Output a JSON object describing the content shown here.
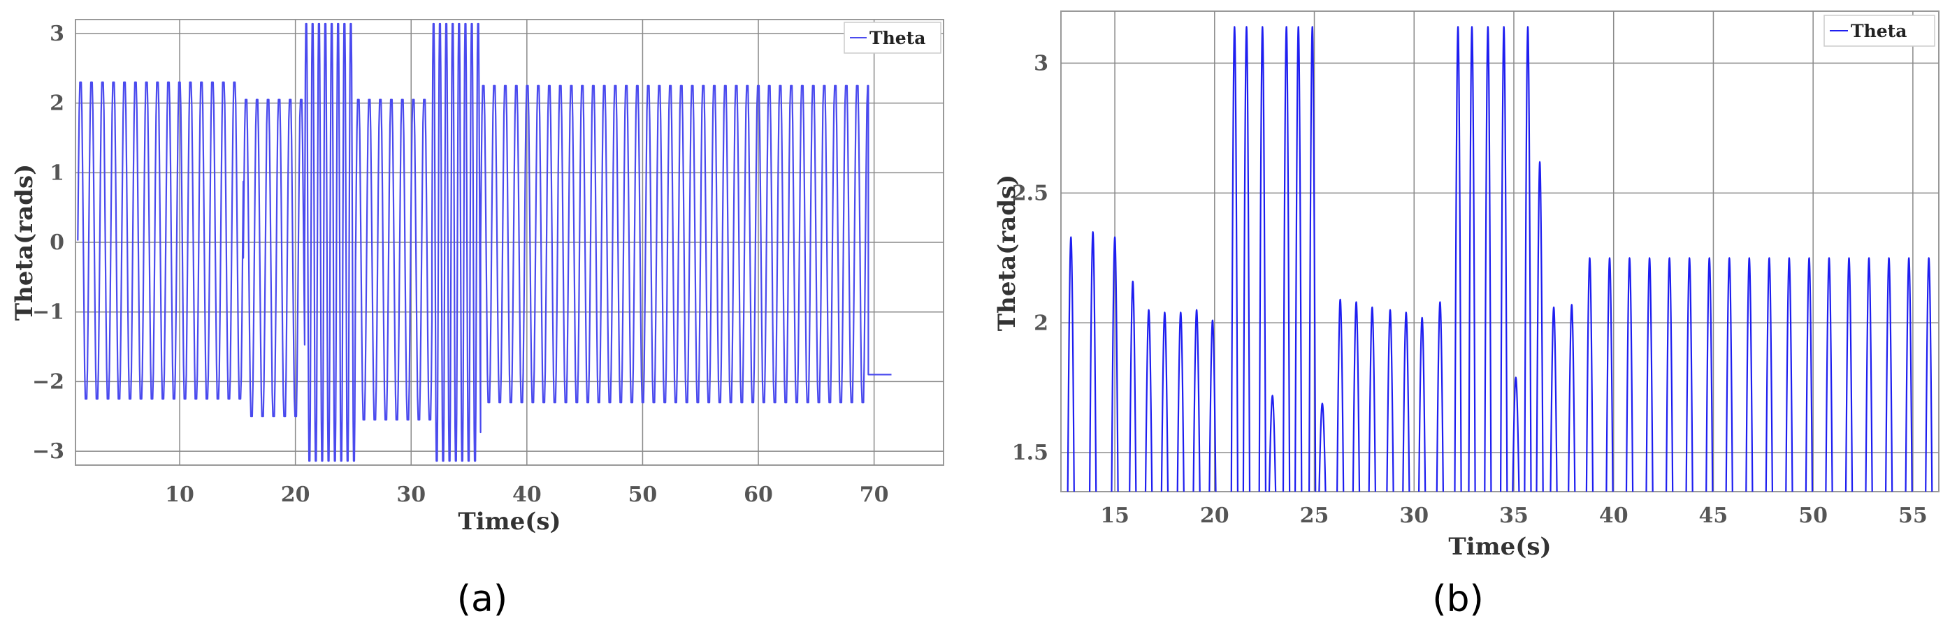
{
  "figure": {
    "panel_labels": [
      "(a)",
      "(b)"
    ]
  },
  "chart_data": [
    {
      "type": "line",
      "panel": "(a)",
      "xlabel": "Time(s)",
      "ylabel": "Theta(rads)",
      "xlim": [
        1,
        76
      ],
      "ylim": [
        -3.2,
        3.2
      ],
      "xticks": [
        10,
        20,
        30,
        40,
        50,
        60,
        70
      ],
      "yticks": [
        -3,
        -2,
        -1,
        0,
        1,
        2,
        3
      ],
      "grid": true,
      "legend": "top-right",
      "series": [
        {
          "name": "Theta",
          "color": "#4a4aee",
          "description_segments": [
            {
              "t_start": 1.2,
              "t_end": 15.5,
              "period": 0.95,
              "max": 2.3,
              "min": -2.25
            },
            {
              "t_start": 15.5,
              "t_end": 20.8,
              "period": 0.95,
              "max": 2.05,
              "min": -2.5
            },
            {
              "t_start": 20.8,
              "t_end": 25.2,
              "period": 0.55,
              "max": 3.14,
              "min": -3.14
            },
            {
              "t_start": 25.2,
              "t_end": 31.8,
              "period": 0.95,
              "max": 2.05,
              "min": -2.55
            },
            {
              "t_start": 31.8,
              "t_end": 36.0,
              "period": 0.55,
              "max": 3.14,
              "min": -3.14
            },
            {
              "t_start": 36.0,
              "t_end": 69.5,
              "period": 0.95,
              "max": 2.25,
              "min": -2.3
            }
          ],
          "tail": {
            "t_start": 69.5,
            "t_end": 71.5,
            "value": -1.9
          }
        }
      ]
    },
    {
      "type": "line",
      "panel": "(b)",
      "xlabel": "Time(s)",
      "ylabel": "Theta(rads)",
      "xlim": [
        12.3,
        56.3
      ],
      "ylim": [
        1.35,
        3.2
      ],
      "xticks": [
        15,
        20,
        25,
        30,
        35,
        40,
        45,
        50,
        55
      ],
      "yticks": [
        1.5,
        2,
        2.5,
        3
      ],
      "ytick_labels": [
        "1.5",
        "2",
        "2.5",
        "3"
      ],
      "grid": true,
      "legend": "top-right",
      "series": [
        {
          "name": "Theta",
          "color": "#1e1ef0",
          "peaks": [
            {
              "t": 12.8,
              "v": 2.33
            },
            {
              "t": 13.9,
              "v": 2.35
            },
            {
              "t": 15.0,
              "v": 2.33
            },
            {
              "t": 15.9,
              "v": 2.16
            },
            {
              "t": 16.7,
              "v": 2.05
            },
            {
              "t": 17.5,
              "v": 2.04
            },
            {
              "t": 18.3,
              "v": 2.04
            },
            {
              "t": 19.1,
              "v": 2.05
            },
            {
              "t": 19.9,
              "v": 2.01
            },
            {
              "t": 21.0,
              "v": 3.14
            },
            {
              "t": 21.6,
              "v": 3.14
            },
            {
              "t": 22.4,
              "v": 3.14
            },
            {
              "t": 22.9,
              "v": 1.72
            },
            {
              "t": 23.6,
              "v": 3.14
            },
            {
              "t": 24.2,
              "v": 3.14
            },
            {
              "t": 24.9,
              "v": 3.14
            },
            {
              "t": 25.4,
              "v": 1.69
            },
            {
              "t": 26.3,
              "v": 2.09
            },
            {
              "t": 27.1,
              "v": 2.08
            },
            {
              "t": 27.9,
              "v": 2.06
            },
            {
              "t": 28.8,
              "v": 2.05
            },
            {
              "t": 29.6,
              "v": 2.04
            },
            {
              "t": 30.4,
              "v": 2.02
            },
            {
              "t": 31.3,
              "v": 2.08
            },
            {
              "t": 32.2,
              "v": 3.14
            },
            {
              "t": 32.9,
              "v": 3.14
            },
            {
              "t": 33.7,
              "v": 3.14
            },
            {
              "t": 34.5,
              "v": 3.14
            },
            {
              "t": 35.1,
              "v": 1.79
            },
            {
              "t": 35.7,
              "v": 3.14
            },
            {
              "t": 36.3,
              "v": 2.62
            },
            {
              "t": 37.0,
              "v": 2.06
            },
            {
              "t": 37.9,
              "v": 2.07
            },
            {
              "t": 38.8,
              "v": 2.25
            },
            {
              "t": 39.8,
              "v": 2.25
            },
            {
              "t": 40.8,
              "v": 2.25
            },
            {
              "t": 41.8,
              "v": 2.25
            },
            {
              "t": 42.8,
              "v": 2.25
            },
            {
              "t": 43.8,
              "v": 2.25
            },
            {
              "t": 44.8,
              "v": 2.25
            },
            {
              "t": 45.8,
              "v": 2.25
            },
            {
              "t": 46.8,
              "v": 2.25
            },
            {
              "t": 47.8,
              "v": 2.25
            },
            {
              "t": 48.8,
              "v": 2.25
            },
            {
              "t": 49.8,
              "v": 2.25
            },
            {
              "t": 50.8,
              "v": 2.25
            },
            {
              "t": 51.8,
              "v": 2.25
            },
            {
              "t": 52.8,
              "v": 2.25
            },
            {
              "t": 53.8,
              "v": 2.25
            },
            {
              "t": 54.8,
              "v": 2.25
            },
            {
              "t": 55.8,
              "v": 2.25
            }
          ]
        }
      ]
    }
  ]
}
